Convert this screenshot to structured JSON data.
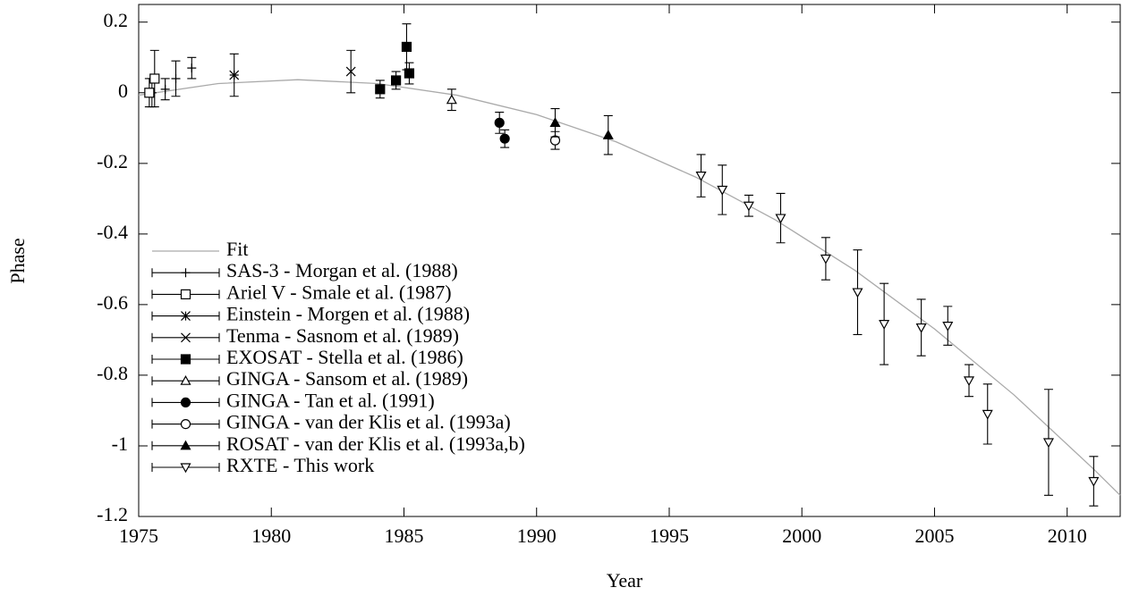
{
  "chart_data": {
    "type": "scatter",
    "xlabel": "Year",
    "ylabel": "Phase",
    "xlim": [
      1975,
      2012
    ],
    "xticks": [
      1975,
      1980,
      1985,
      1990,
      1995,
      2000,
      2005,
      2010
    ],
    "ylim": [
      -1.2,
      0.25
    ],
    "yticks": [
      0.2,
      0,
      -0.2,
      -0.4,
      -0.6,
      -0.8,
      -1,
      -1.2
    ],
    "legend": "upper-left",
    "fit": {
      "name": "Fit",
      "color": "#aaaaaa",
      "x": [
        1975,
        1978,
        1981,
        1984,
        1987,
        1990,
        1993,
        1996,
        1999,
        2002,
        2005,
        2008,
        2011,
        2012
      ],
      "values": [
        -0.007,
        0.026,
        0.037,
        0.026,
        -0.007,
        -0.062,
        -0.139,
        -0.239,
        -0.36,
        -0.503,
        -0.669,
        -0.856,
        -1.066,
        -1.14
      ]
    },
    "series": [
      {
        "name": "SAS-3 - Morgan et al. (1988)",
        "marker": "plus",
        "color": "#000000",
        "x": [
          1975.5,
          1976.0,
          1976.4,
          1977.0
        ],
        "values": [
          0.0,
          0.01,
          0.04,
          0.07
        ],
        "errors": [
          0.04,
          0.03,
          0.05,
          0.03
        ]
      },
      {
        "name": "Ariel V - Smale et al. (1987)",
        "marker": "square-open",
        "color": "#000000",
        "x": [
          1975.4,
          1975.6
        ],
        "values": [
          0.0,
          0.04
        ],
        "errors": [
          0.04,
          0.08
        ]
      },
      {
        "name": "Einstein - Morgen et al. (1988)",
        "marker": "star",
        "color": "#000000",
        "x": [
          1978.6
        ],
        "values": [
          0.05
        ],
        "errors": [
          0.06
        ]
      },
      {
        "name": "Tenma - Sasnom et al. (1989)",
        "marker": "cross",
        "color": "#000000",
        "x": [
          1983.0
        ],
        "values": [
          0.06
        ],
        "errors": [
          0.06
        ]
      },
      {
        "name": "EXOSAT - Stella et al. (1986)",
        "marker": "square-filled",
        "color": "#000000",
        "x": [
          1984.1,
          1984.7,
          1985.1,
          1985.2
        ],
        "values": [
          0.01,
          0.035,
          0.13,
          0.055
        ],
        "errors": [
          0.025,
          0.025,
          0.065,
          0.03
        ]
      },
      {
        "name": "GINGA - Sansom et al. (1989)",
        "marker": "triangle-open",
        "color": "#000000",
        "x": [
          1986.8
        ],
        "values": [
          -0.02
        ],
        "errors": [
          0.03
        ]
      },
      {
        "name": "GINGA - Tan et al. (1991)",
        "marker": "circle-filled",
        "color": "#000000",
        "x": [
          1988.6,
          1988.8
        ],
        "values": [
          -0.085,
          -0.13
        ],
        "errors": [
          0.03,
          0.025
        ]
      },
      {
        "name": "GINGA - van der Klis et al. (1993a)",
        "marker": "circle-open",
        "color": "#000000",
        "x": [
          1990.7
        ],
        "values": [
          -0.135
        ],
        "errors": [
          0.025
        ]
      },
      {
        "name": "ROSAT - van der Klis et al. (1993a,b)",
        "marker": "triangle-filled",
        "color": "#000000",
        "x": [
          1990.7,
          1992.7
        ],
        "values": [
          -0.085,
          -0.12
        ],
        "errors": [
          0.04,
          0.055
        ]
      },
      {
        "name": "RXTE - This work",
        "marker": "triangle-down-open",
        "color": "#000000",
        "x": [
          1996.2,
          1997.0,
          1998.0,
          1999.2,
          2000.9,
          2002.1,
          2003.1,
          2004.5,
          2005.5,
          2006.3,
          2007.0,
          2009.3,
          2011.0
        ],
        "values": [
          -0.235,
          -0.275,
          -0.32,
          -0.355,
          -0.47,
          -0.565,
          -0.655,
          -0.665,
          -0.66,
          -0.815,
          -0.91,
          -0.99,
          -1.1
        ],
        "errors": [
          0.06,
          0.07,
          0.03,
          0.07,
          0.06,
          0.12,
          0.115,
          0.08,
          0.055,
          0.045,
          0.085,
          0.15,
          0.07
        ]
      }
    ]
  }
}
